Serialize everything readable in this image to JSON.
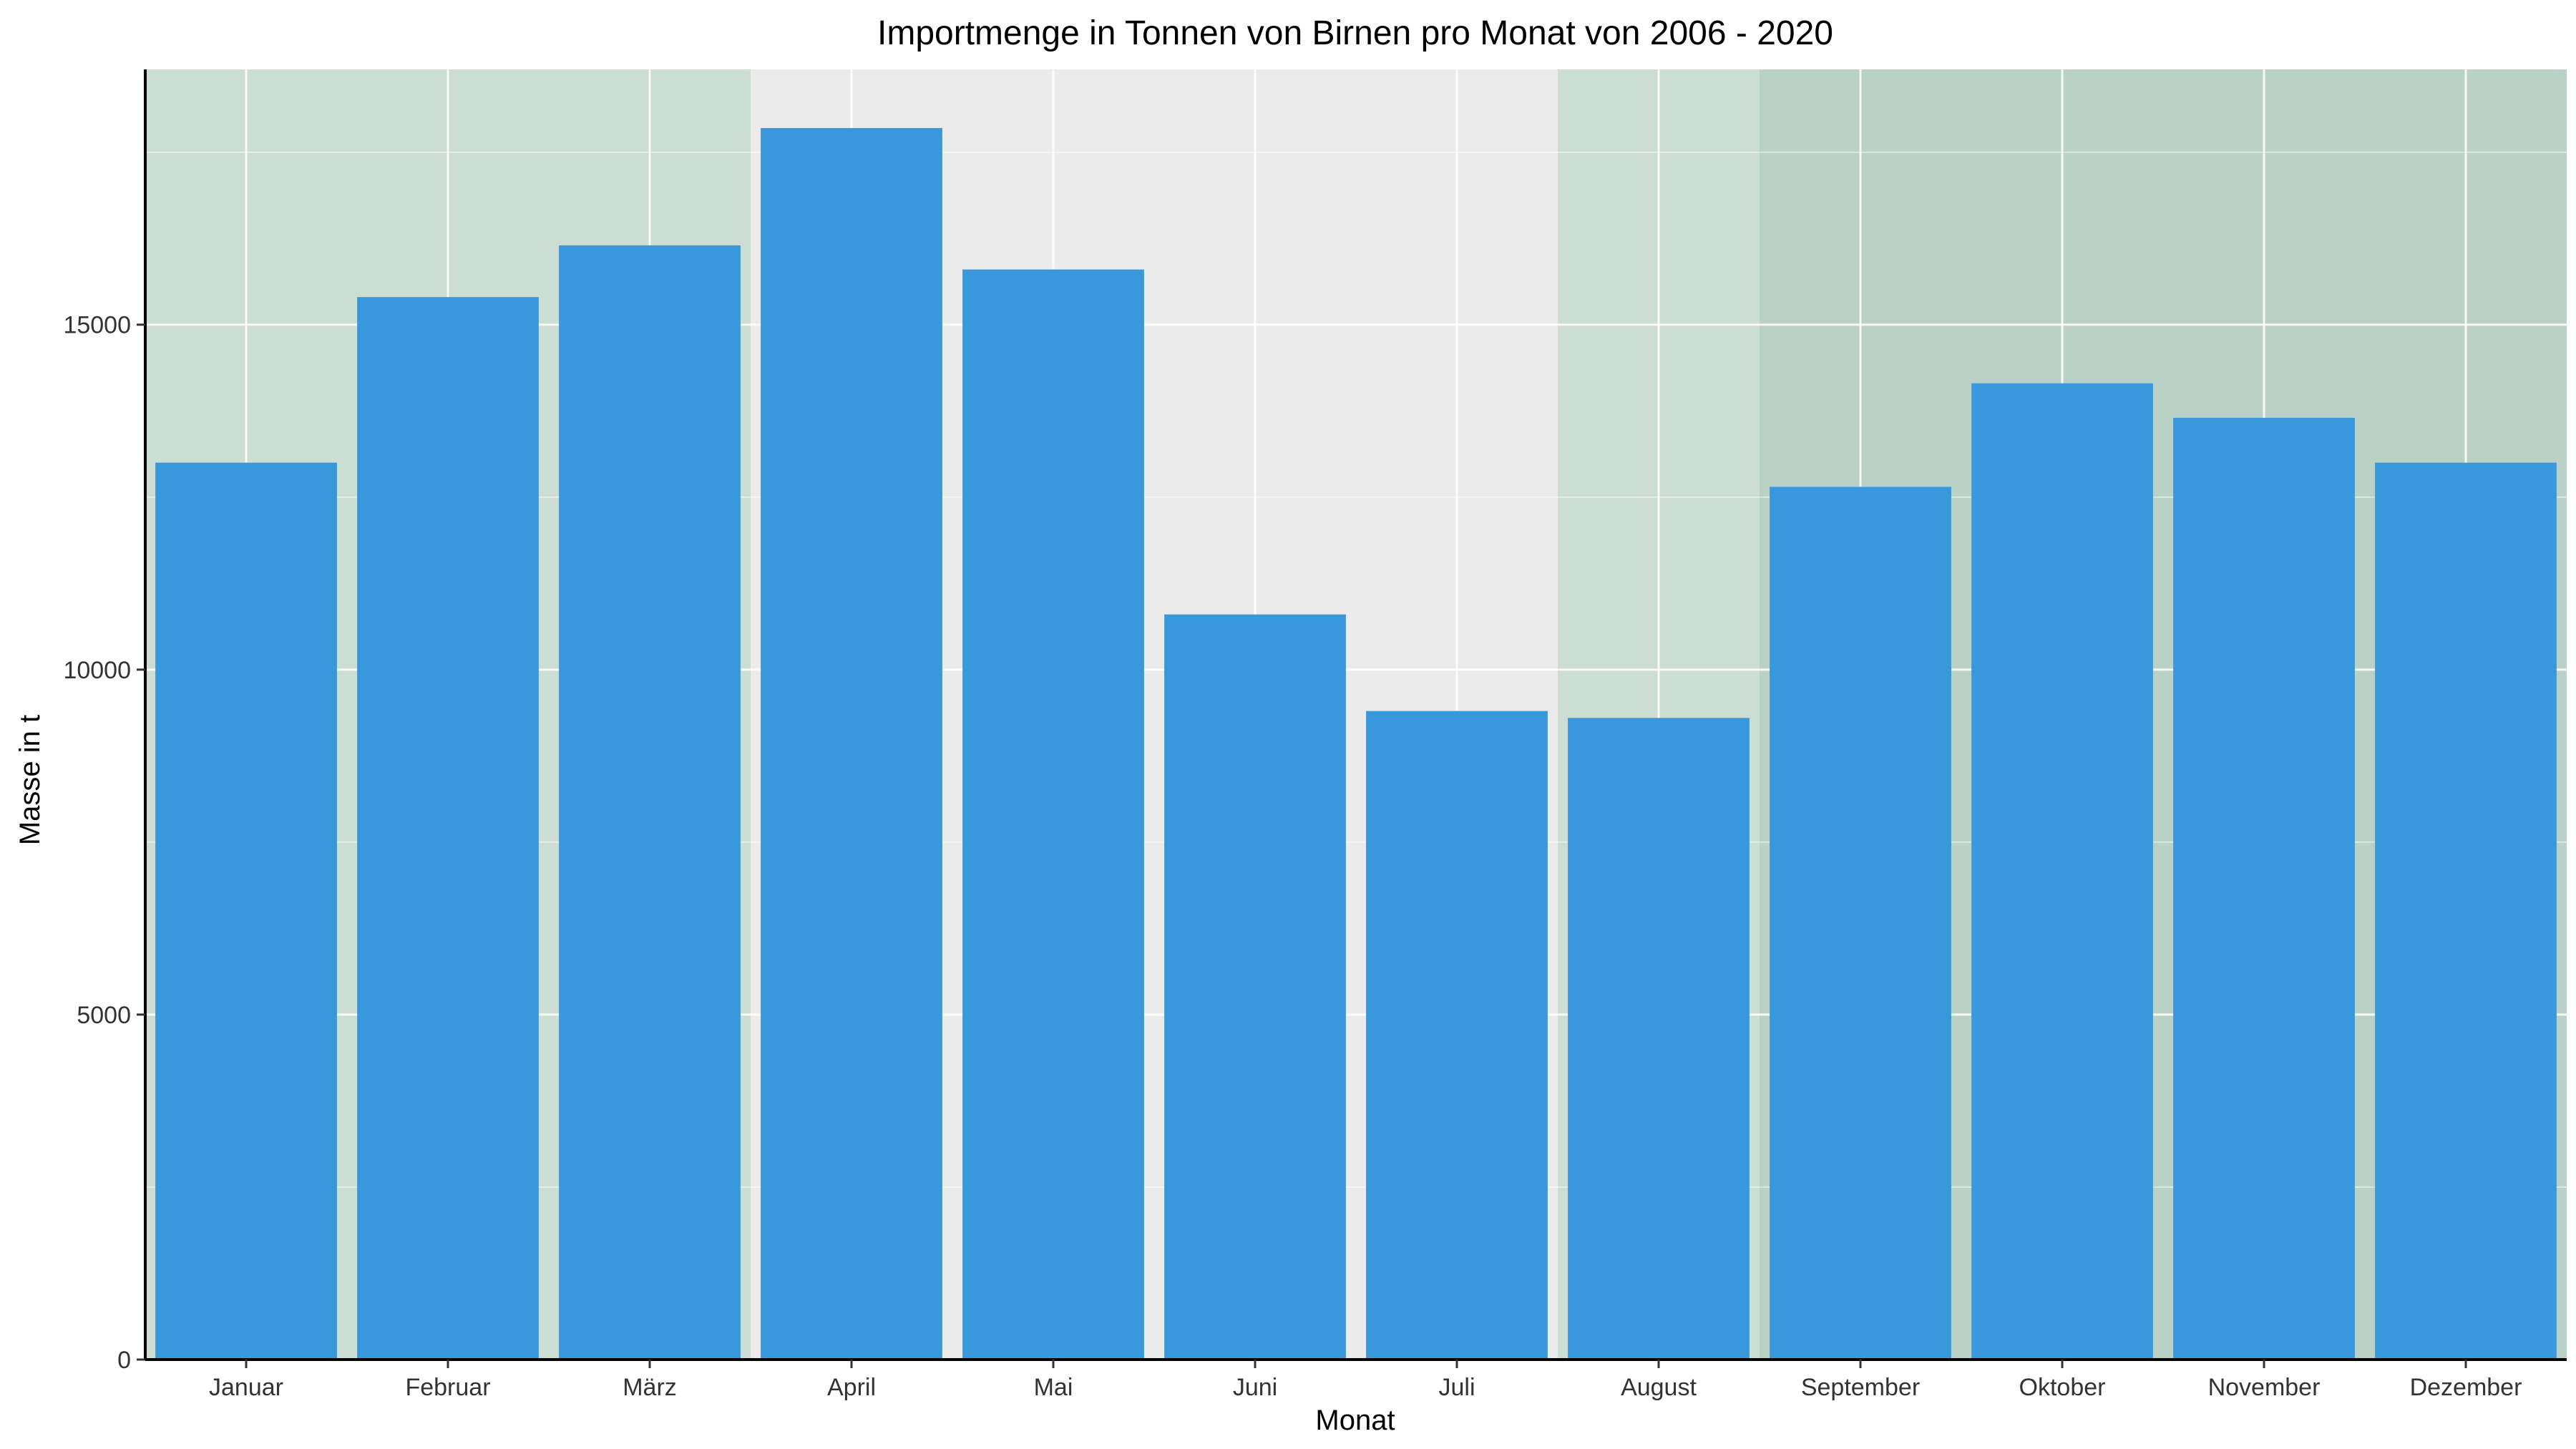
{
  "chart_data": {
    "type": "bar",
    "title": "Importmenge in Tonnen von Birnen pro Monat von 2006 - 2020",
    "xlabel": "Monat",
    "ylabel": "Masse in t",
    "categories": [
      "Januar",
      "Februar",
      "März",
      "April",
      "Mai",
      "Juni",
      "Juli",
      "August",
      "September",
      "Oktober",
      "November",
      "Dezember"
    ],
    "values": [
      13000,
      15400,
      16150,
      17850,
      15800,
      10800,
      9400,
      9300,
      12650,
      14150,
      13650,
      13000
    ],
    "ylim": [
      0,
      18700
    ],
    "yticks": [
      0,
      5000,
      10000,
      15000
    ],
    "grid": true,
    "legend": "none",
    "colors": {
      "bar": "#3898DB",
      "panel": "#EBEBEB",
      "shade_light": "#CCDDD4",
      "shade_dark": "#B9D2C5",
      "grid": "#FFFFFF",
      "axis": "#000000"
    },
    "shaded_regions": [
      {
        "from": "Januar",
        "to": "März",
        "tone": "light"
      },
      {
        "from": "August",
        "to": "August",
        "tone": "light"
      },
      {
        "from": "September",
        "to": "Dezember",
        "tone": "dark"
      }
    ]
  }
}
